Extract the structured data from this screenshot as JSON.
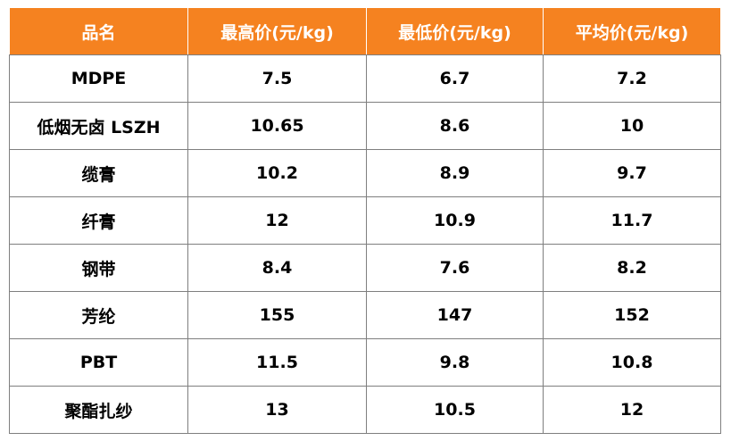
{
  "colors": {
    "header_bg": "#f58220",
    "header_text": "#ffffff",
    "border": "#7f7f7f"
  },
  "table": {
    "headers": [
      "品名",
      "最高价(元/kg)",
      "最低价(元/kg)",
      "平均价(元/kg)"
    ],
    "rows": [
      [
        "MDPE",
        "7.5",
        "6.7",
        "7.2"
      ],
      [
        "低烟无卤 LSZH",
        "10.65",
        "8.6",
        "10"
      ],
      [
        "缆膏",
        "10.2",
        "8.9",
        "9.7"
      ],
      [
        "纤膏",
        "12",
        "10.9",
        "11.7"
      ],
      [
        "钢带",
        "8.4",
        "7.6",
        "8.2"
      ],
      [
        "芳纶",
        "155",
        "147",
        "152"
      ],
      [
        "PBT",
        "11.5",
        "9.8",
        "10.8"
      ],
      [
        "聚酯扎纱",
        "13",
        "10.5",
        "12"
      ]
    ]
  }
}
